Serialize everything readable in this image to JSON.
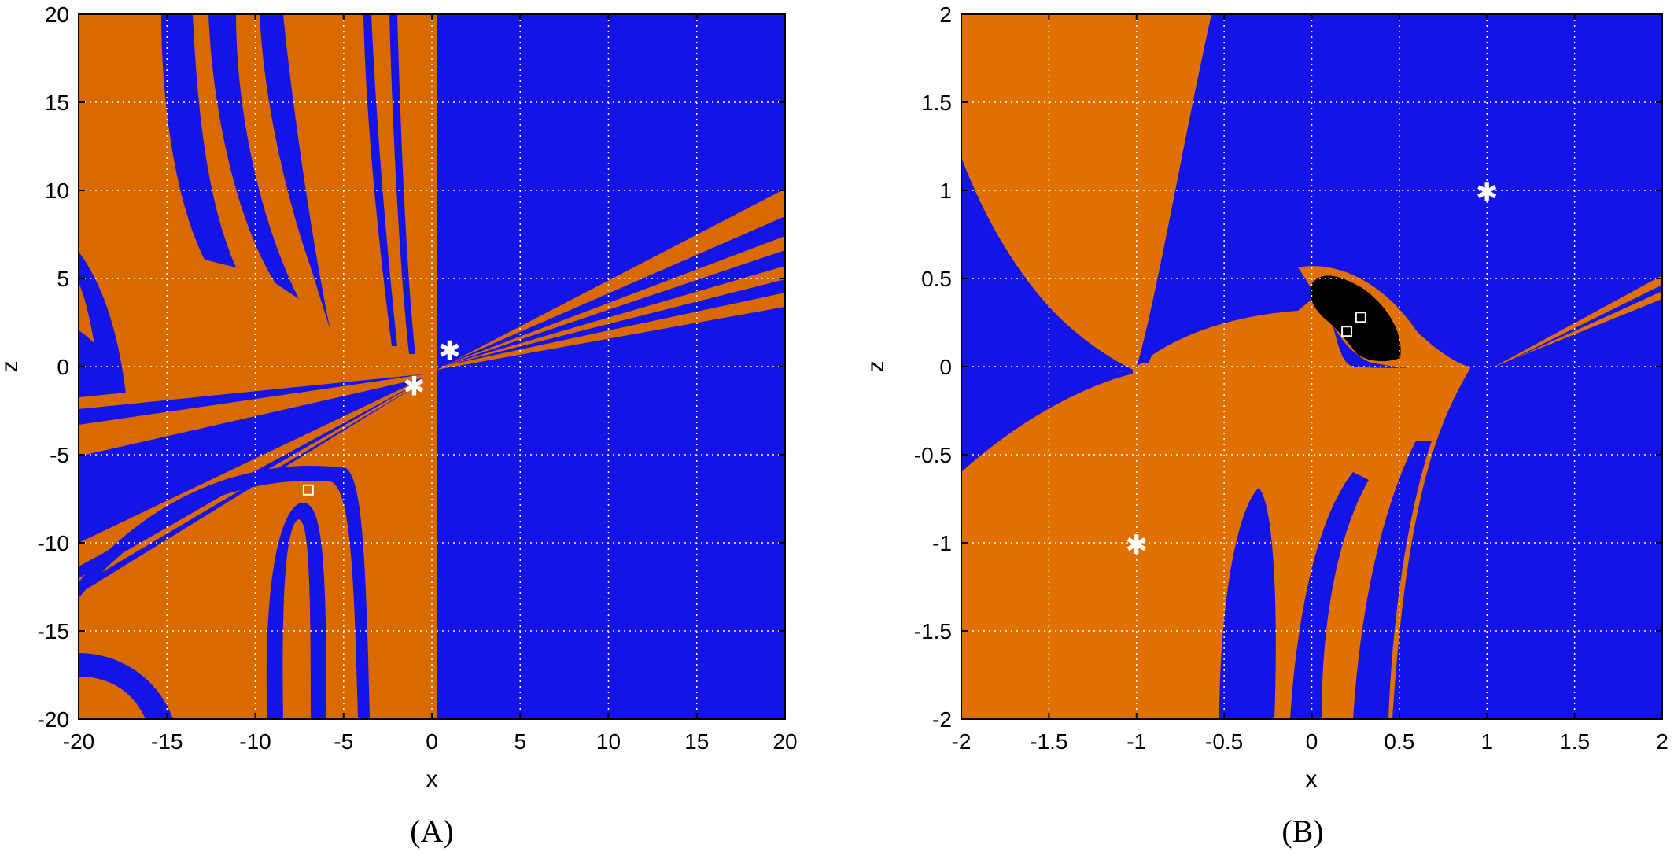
{
  "chart_data": [
    {
      "type": "heatmap",
      "panel_label": "(A)",
      "xlabel": "x",
      "ylabel": "z",
      "xlim": [
        -20,
        20
      ],
      "ylim": [
        -20,
        20
      ],
      "xticks": [
        -20,
        -15,
        -10,
        -5,
        0,
        5,
        10,
        15,
        20
      ],
      "yticks": [
        -20,
        -15,
        -10,
        -5,
        0,
        5,
        10,
        15,
        20
      ],
      "xtick_labels": [
        "-20",
        "-15",
        "-10",
        "-5",
        "0",
        "5",
        "10",
        "15",
        "20"
      ],
      "ytick_labels": [
        "-20",
        "-15",
        "-10",
        "-5",
        "0",
        "5",
        "10",
        "15",
        "20"
      ],
      "grid": true,
      "colors": {
        "basin_orange": "#d96a00",
        "basin_blue": "#1414e6"
      },
      "star_markers": [
        {
          "x": 1,
          "z": 1
        },
        {
          "x": -1,
          "z": -1
        }
      ],
      "square_markers": [
        {
          "x": -7,
          "z": -7
        }
      ]
    },
    {
      "type": "heatmap",
      "panel_label": "(B)",
      "xlabel": "x",
      "ylabel": "z",
      "xlim": [
        -2,
        2
      ],
      "ylim": [
        -2,
        2
      ],
      "xticks": [
        -2,
        -1.5,
        -1,
        -0.5,
        0,
        0.5,
        1,
        1.5,
        2
      ],
      "yticks": [
        -2,
        -1.5,
        -1,
        -0.5,
        0,
        0.5,
        1,
        1.5,
        2
      ],
      "xtick_labels": [
        "-2",
        "-1.5",
        "-1",
        "-0.5",
        "0",
        "0.5",
        "1",
        "1.5",
        "2"
      ],
      "ytick_labels": [
        "-2",
        "-1.5",
        "-1",
        "-0.5",
        "0",
        "0.5",
        "1",
        "1.5",
        "2"
      ],
      "grid": true,
      "colors": {
        "basin_orange": "#e07000",
        "basin_blue": "#1414e6",
        "basin_black": "#000000"
      },
      "star_markers": [
        {
          "x": 1,
          "z": 1
        },
        {
          "x": -1,
          "z": -1
        }
      ],
      "square_markers": [
        {
          "x": 0.2,
          "z": 0.2
        },
        {
          "x": 0.28,
          "z": 0.28
        }
      ]
    }
  ]
}
